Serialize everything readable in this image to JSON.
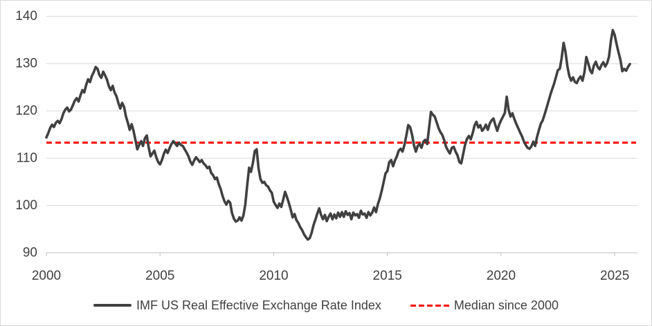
{
  "chart": {
    "background": "#ffffff",
    "border_color": "#d9d9d9",
    "grid_color": "#d9d9d9",
    "axis_color": "#bfbfbf",
    "text_color": "#404040",
    "legend": [
      {
        "label": "IMF US Real Effective Exchange Rate Index",
        "color": "#404040",
        "style": "solid"
      },
      {
        "label": "Median since 2000",
        "color": "#ff0000",
        "style": "dashed"
      }
    ]
  },
  "chart_data": {
    "type": "line",
    "title": "",
    "xlabel": "",
    "ylabel": "",
    "xlim": [
      2000,
      2026
    ],
    "ylim": [
      90,
      140
    ],
    "x_ticks": [
      2000,
      2005,
      2010,
      2015,
      2020,
      2025
    ],
    "y_ticks": [
      90,
      100,
      110,
      120,
      130,
      140
    ],
    "grid": "horizontal",
    "legend_position": "bottom",
    "series": [
      {
        "name": "IMF US Real Effective Exchange Rate Index",
        "color": "#404040",
        "style": "solid",
        "frequency": "monthly",
        "x_start": "2000-01",
        "x_end": "2025-09",
        "values": [
          114.4,
          115.3,
          116.4,
          117.1,
          116.6,
          117.5,
          117.9,
          117.4,
          118.3,
          119.5,
          120.3,
          120.7,
          119.9,
          120.3,
          121.2,
          122.2,
          122.7,
          122.0,
          123.3,
          124.4,
          123.9,
          125.5,
          126.7,
          126.1,
          127.4,
          128.2,
          129.3,
          128.9,
          127.6,
          127.0,
          128.3,
          127.5,
          126.6,
          125.2,
          124.4,
          125.3,
          123.9,
          123.1,
          121.7,
          120.5,
          121.7,
          120.9,
          118.8,
          117.5,
          116.0,
          117.2,
          115.8,
          113.9,
          111.9,
          112.8,
          113.6,
          112.6,
          114.2,
          114.8,
          112.3,
          110.4,
          111.0,
          111.6,
          110.2,
          109.2,
          108.7,
          109.6,
          110.9,
          111.8,
          111.1,
          112.1,
          113.0,
          113.6,
          113.1,
          112.6,
          113.3,
          112.8,
          112.6,
          111.9,
          111.2,
          110.4,
          109.3,
          108.6,
          109.5,
          110.2,
          109.7,
          109.2,
          109.6,
          108.9,
          108.5,
          107.9,
          108.2,
          106.9,
          106.4,
          105.6,
          105.9,
          104.5,
          103.5,
          102.0,
          100.9,
          100.2,
          101.0,
          100.6,
          98.4,
          97.2,
          96.6,
          96.8,
          97.5,
          96.8,
          97.9,
          100.2,
          104.2,
          108.0,
          107.1,
          109.0,
          111.5,
          111.9,
          107.8,
          105.6,
          104.8,
          105.0,
          104.3,
          104.0,
          103.2,
          102.7,
          100.8,
          100.1,
          99.5,
          100.4,
          99.7,
          101.2,
          102.9,
          101.8,
          100.5,
          99.1,
          97.5,
          98.2,
          96.9,
          96.3,
          95.4,
          94.8,
          93.9,
          93.3,
          92.8,
          93.1,
          94.2,
          95.8,
          97.0,
          98.3,
          99.4,
          98.0,
          97.1,
          98.0,
          96.7,
          97.6,
          98.3,
          97.1,
          98.1,
          97.3,
          98.5,
          97.6,
          98.6,
          97.6,
          98.8,
          98.0,
          98.4,
          97.1,
          98.5,
          97.9,
          98.2,
          97.4,
          98.9,
          98.1,
          98.3,
          97.4,
          98.6,
          97.9,
          98.5,
          99.6,
          98.6,
          100.3,
          101.5,
          103.1,
          104.9,
          106.8,
          107.3,
          109.2,
          109.6,
          108.3,
          109.5,
          110.4,
          111.6,
          112.0,
          111.4,
          112.8,
          114.8,
          117.0,
          116.6,
          115.0,
          112.8,
          111.4,
          112.6,
          113.0,
          112.2,
          113.5,
          113.9,
          113.0,
          116.4,
          119.8,
          119.2,
          118.8,
          117.6,
          116.4,
          115.5,
          114.9,
          113.8,
          112.4,
          111.6,
          111.0,
          112.2,
          112.4,
          111.4,
          110.6,
          109.2,
          108.9,
          110.9,
          112.8,
          114.1,
          114.7,
          114.0,
          115.3,
          116.9,
          117.7,
          116.5,
          117.0,
          115.8,
          116.3,
          117.1,
          116.0,
          117.3,
          118.0,
          118.4,
          117.0,
          115.8,
          117.1,
          118.0,
          118.8,
          119.6,
          123.0,
          120.2,
          118.8,
          119.5,
          118.3,
          117.3,
          116.4,
          115.5,
          114.7,
          113.6,
          112.8,
          112.2,
          112.0,
          112.5,
          113.5,
          112.6,
          114.5,
          116.0,
          117.3,
          118.0,
          119.3,
          120.6,
          122.0,
          123.4,
          124.6,
          125.8,
          127.2,
          128.6,
          128.9,
          131.2,
          134.4,
          132.5,
          129.5,
          127.4,
          126.4,
          127.1,
          126.1,
          125.9,
          126.8,
          127.3,
          126.4,
          128.2,
          131.4,
          130.1,
          128.6,
          128.0,
          129.6,
          130.4,
          129.3,
          128.8,
          129.7,
          130.3,
          129.4,
          130.1,
          131.5,
          134.9,
          137.1,
          136.0,
          134.1,
          132.4,
          130.8,
          128.4,
          128.9,
          128.5,
          129.3,
          129.9
        ]
      },
      {
        "name": "Median since 2000",
        "color": "#ff0000",
        "style": "dashed",
        "value": 113.3
      }
    ]
  }
}
